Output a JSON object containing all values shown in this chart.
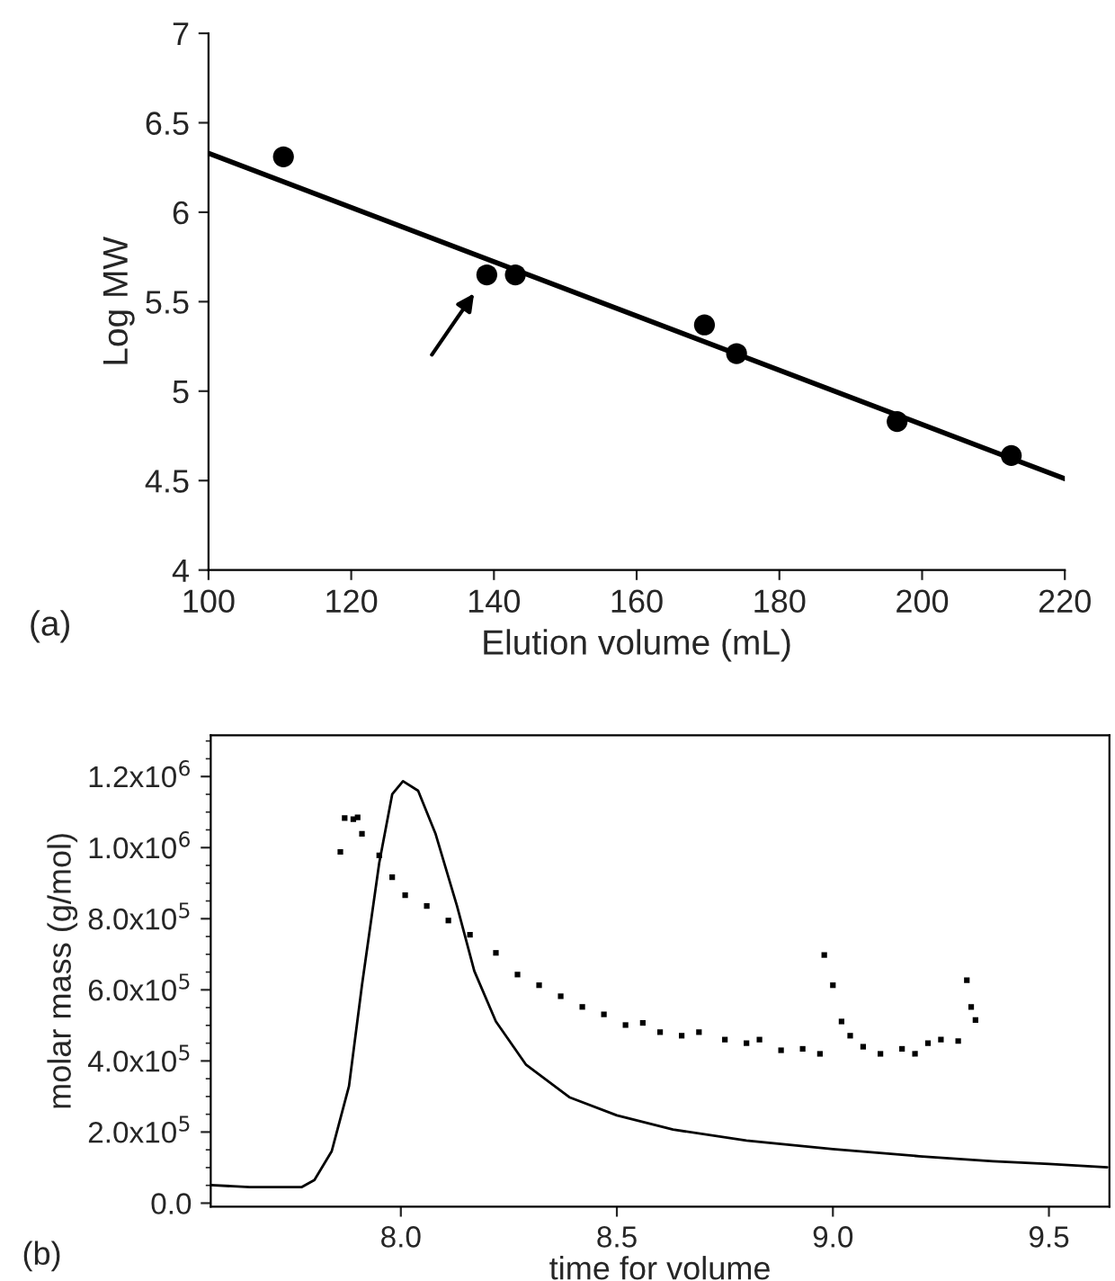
{
  "chart_data": [
    {
      "type": "scatter",
      "xlabel": "Elution volume (mL)",
      "ylabel": "Log MW",
      "xlim": [
        100,
        220
      ],
      "ylim": [
        4,
        7
      ],
      "xticks": [
        100,
        120,
        140,
        160,
        180,
        200,
        220
      ],
      "yticks": [
        4,
        4.5,
        5,
        5.5,
        6,
        6.5,
        7
      ],
      "legend": false,
      "grid": false,
      "annotations": [
        "(a)"
      ],
      "series": [
        {
          "color": "#000000",
          "marker": "circle",
          "x": [
            110.5,
            139,
            143,
            169.5,
            174,
            196.5,
            212.5
          ],
          "values": [
            6.31,
            5.65,
            5.65,
            5.37,
            5.21,
            4.83,
            4.64
          ]
        },
        {
          "type": "line",
          "color": "#000000",
          "x": [
            100,
            220
          ],
          "values": [
            6.33,
            4.51
          ]
        }
      ]
    },
    {
      "type": "line",
      "xlabel": "time for volume",
      "ylabel": "molar mass (g/mol)",
      "xlim": [
        7.56,
        9.64
      ],
      "ylim": [
        -10000,
        1316000
      ],
      "xticks": [
        {
          "value": 8.0,
          "label": "8.0"
        },
        {
          "value": 8.5,
          "label": "8.5"
        },
        {
          "value": 9.0,
          "label": "9.0"
        },
        {
          "value": 9.5,
          "label": "9.5"
        }
      ],
      "yticks": [
        {
          "value": 0,
          "label": "0.0"
        },
        {
          "value": 200000,
          "label": "2.0x10$^{5}$"
        },
        {
          "value": 400000,
          "label": "4.0x10$^{5}$"
        },
        {
          "value": 600000,
          "label": "6.0x10$^{5}$"
        },
        {
          "value": 800000,
          "label": "8.0x10$^{5}$"
        },
        {
          "value": 1000000,
          "label": "1.0x10$^{6}$"
        },
        {
          "value": 1200000,
          "label": "1.2x10$^{6}$"
        }
      ],
      "legend": false,
      "grid": false,
      "annotations": [
        "(b)"
      ],
      "series": [
        {
          "color": "#000000",
          "x": [
            7.56,
            7.65,
            7.77,
            7.8,
            7.84,
            7.88,
            7.91,
            7.95,
            7.98,
            8.005,
            8.04,
            8.08,
            8.13,
            8.17,
            8.22,
            8.29,
            8.39,
            8.5,
            8.63,
            8.8,
            9.0,
            9.2,
            9.37,
            9.5,
            9.635
          ],
          "values": [
            51000,
            45000,
            45000,
            65000,
            146000,
            329000,
            613000,
            957000,
            1150000,
            1187000,
            1160000,
            1040000,
            836000,
            653000,
            511000,
            389000,
            298000,
            247000,
            207000,
            176000,
            152000,
            132000,
            118000,
            110000,
            101000
          ]
        },
        {
          "type": "scatter",
          "color": "#000000",
          "marker": "square",
          "x": [
            7.86,
            7.87,
            7.89,
            7.9,
            7.91,
            7.95,
            7.98,
            8.01,
            8.06,
            8.11,
            8.16,
            8.22,
            8.27,
            8.32,
            8.37,
            8.42,
            8.47,
            8.52,
            8.56,
            8.6,
            8.65,
            8.69,
            8.75,
            8.8,
            8.83,
            8.88,
            8.93,
            8.97,
            8.98,
            9.0,
            9.02,
            9.04,
            9.07,
            9.11,
            9.16,
            9.19,
            9.22,
            9.25,
            9.29,
            9.31,
            9.32,
            9.33
          ],
          "values": [
            988000,
            1083000,
            1080000,
            1085000,
            1039000,
            978000,
            917000,
            866000,
            836000,
            795000,
            755000,
            704000,
            643000,
            613000,
            582000,
            552000,
            531000,
            501000,
            507000,
            481000,
            471000,
            481000,
            460000,
            450000,
            460000,
            430000,
            434000,
            420000,
            698000,
            613000,
            511000,
            471000,
            440000,
            420000,
            434000,
            420000,
            450000,
            460000,
            456000,
            627000,
            552000,
            515000
          ]
        }
      ]
    }
  ]
}
